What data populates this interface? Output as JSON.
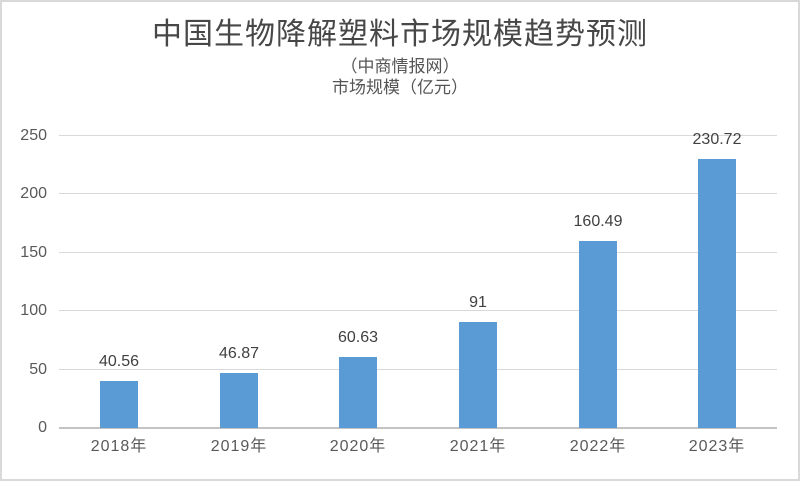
{
  "header": {
    "title": "中国生物降解塑料市场规模趋势预测",
    "subtitle": "（中商情报网）",
    "axis_note": "市场规模（亿元）"
  },
  "chart_data": {
    "type": "bar",
    "title": "中国生物降解塑料市场规模趋势预测",
    "subtitle": "（中商情报网）",
    "ylabel": "市场规模（亿元）",
    "xlabel": "",
    "categories": [
      "2018年",
      "2019年",
      "2020年",
      "2021年",
      "2022年",
      "2023年"
    ],
    "values": [
      40.56,
      46.87,
      60.63,
      91,
      160.49,
      230.72
    ],
    "data_labels": [
      "40.56",
      "46.87",
      "60.63",
      "91",
      "160.49",
      "230.72"
    ],
    "ylim": [
      0,
      250
    ],
    "yticks": [
      0,
      50,
      100,
      150,
      200,
      250
    ],
    "grid": true,
    "legend": "none",
    "colors": {
      "bar": "#5b9bd5",
      "gridline": "#d9d9d9",
      "axis_line": "#c3c3c3",
      "tick_text": "#595959",
      "data_label_text": "#404040",
      "title_text": "#474747",
      "frame_border": "#d9d9d9",
      "background": "#ffffff"
    }
  }
}
